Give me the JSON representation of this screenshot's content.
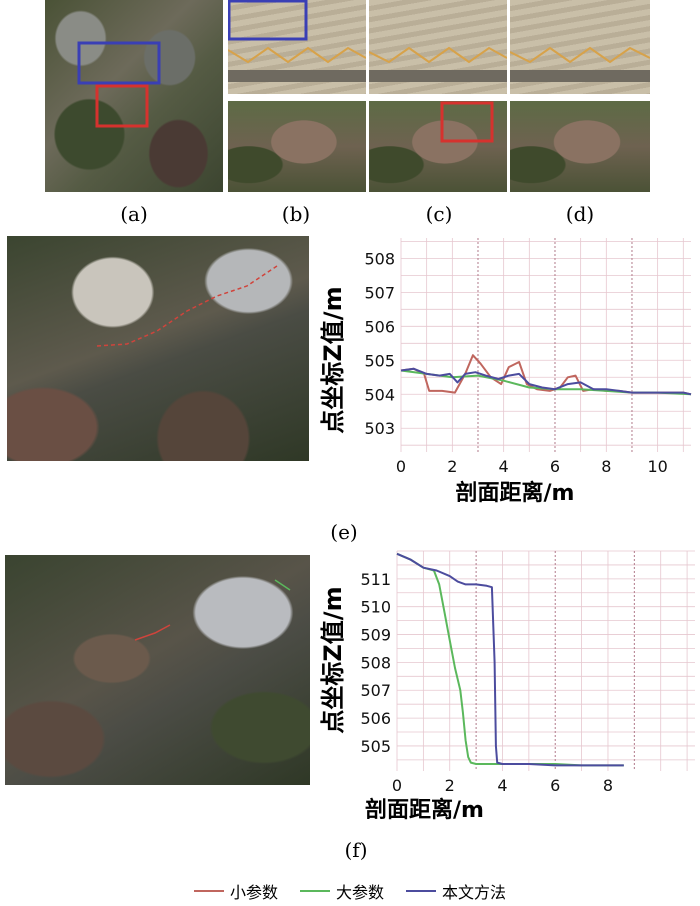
{
  "panel_labels": {
    "a": "(a)",
    "b": "(b)",
    "c": "(c)",
    "d": "(d)",
    "e": "(e)",
    "f": "(f)"
  },
  "legend": [
    {
      "label": "小参数",
      "color": "#c0665e"
    },
    {
      "label": "大参数",
      "color": "#5bb85c"
    },
    {
      "label": "本文方法",
      "color": "#4c4c9e"
    }
  ],
  "colors": {
    "box_blue": "#3a3fb5",
    "box_red": "#d6322e",
    "grid": "#e6c7cf",
    "grid_dashed": "#b07a8a"
  },
  "chart_data": [
    {
      "panel": "(e)",
      "type": "line",
      "ylabel": "点坐标Z值/m",
      "xlabel": "剖面距离/m",
      "xlim": [
        0,
        11.3
      ],
      "ylim": [
        502.3,
        508.6
      ],
      "xticks": [
        0,
        2,
        4,
        6,
        8,
        10
      ],
      "yticks": [
        503,
        504,
        505,
        506,
        507,
        508
      ],
      "series": [
        {
          "name": "小参数",
          "color": "#c0665e",
          "x": [
            0,
            0.5,
            0.9,
            1.1,
            1.6,
            2.1,
            2.5,
            2.8,
            3.1,
            3.5,
            3.9,
            4.2,
            4.6,
            4.9,
            5.3,
            5.8,
            6.2,
            6.5,
            6.8,
            7.1,
            7.5,
            8.0,
            8.5,
            9.0,
            9.5,
            10.0,
            10.5,
            11.0,
            11.3
          ],
          "y": [
            504.7,
            504.75,
            504.6,
            504.1,
            504.1,
            504.05,
            504.6,
            505.15,
            504.9,
            504.5,
            504.3,
            504.8,
            504.95,
            504.3,
            504.15,
            504.1,
            504.2,
            504.5,
            504.55,
            504.1,
            504.15,
            504.1,
            504.1,
            504.05,
            504.05,
            504.05,
            504.05,
            504.05,
            504.0
          ]
        },
        {
          "name": "大参数",
          "color": "#5bb85c",
          "x": [
            0,
            1.0,
            2.0,
            3.0,
            4.0,
            5.0,
            6.0,
            7.0,
            8.0,
            9.0,
            10.0,
            11.3
          ],
          "y": [
            504.7,
            504.6,
            504.5,
            504.55,
            504.4,
            504.2,
            504.15,
            504.15,
            504.1,
            504.05,
            504.05,
            504.0
          ]
        },
        {
          "name": "本文方法",
          "color": "#4c4c9e",
          "x": [
            0,
            0.5,
            1.0,
            1.5,
            1.9,
            2.2,
            2.5,
            2.9,
            3.3,
            3.8,
            4.2,
            4.6,
            5.0,
            5.5,
            6.0,
            6.5,
            7.0,
            7.5,
            8.0,
            8.5,
            9.0,
            9.5,
            10.0,
            10.5,
            11.0,
            11.3
          ],
          "y": [
            504.7,
            504.75,
            504.6,
            504.55,
            504.6,
            504.35,
            504.6,
            504.65,
            504.55,
            504.45,
            504.55,
            504.6,
            504.3,
            504.2,
            504.15,
            504.3,
            504.35,
            504.15,
            504.15,
            504.1,
            504.05,
            504.05,
            504.05,
            504.05,
            504.05,
            504.0
          ]
        }
      ]
    },
    {
      "panel": "(f)",
      "type": "line",
      "ylabel": "点坐标Z值/m",
      "xlabel": "剖面距离/m",
      "xlim": [
        0,
        11.3
      ],
      "ylim": [
        504.1,
        512.0
      ],
      "xticks": [
        0,
        2,
        4,
        6,
        8
      ],
      "yticks": [
        505,
        506,
        507,
        508,
        509,
        510,
        511
      ],
      "series": [
        {
          "name": "大参数",
          "color": "#5bb85c",
          "x": [
            0,
            0.5,
            1.0,
            1.4,
            1.6,
            1.8,
            2.0,
            2.2,
            2.4,
            2.5,
            2.6,
            2.7,
            2.8,
            3.0,
            3.4,
            4.0,
            5.0,
            6.0,
            7.0,
            8.0,
            8.6
          ],
          "y": [
            511.9,
            511.7,
            511.4,
            511.3,
            510.8,
            509.8,
            508.8,
            507.8,
            507.0,
            506.2,
            505.2,
            504.6,
            504.4,
            504.35,
            504.35,
            504.35,
            504.35,
            504.35,
            504.3,
            504.3,
            504.3
          ]
        },
        {
          "name": "本文方法",
          "color": "#4c4c9e",
          "x": [
            0,
            0.5,
            1.0,
            1.5,
            2.0,
            2.3,
            2.6,
            3.0,
            3.4,
            3.6,
            3.7,
            3.75,
            3.8,
            4.0,
            4.5,
            5.0,
            6.0,
            7.0,
            8.0,
            8.6
          ],
          "y": [
            511.9,
            511.7,
            511.4,
            511.3,
            511.1,
            510.9,
            510.8,
            510.8,
            510.75,
            510.7,
            508.0,
            505.0,
            504.4,
            504.35,
            504.35,
            504.35,
            504.3,
            504.3,
            504.3,
            504.3
          ]
        }
      ]
    }
  ]
}
